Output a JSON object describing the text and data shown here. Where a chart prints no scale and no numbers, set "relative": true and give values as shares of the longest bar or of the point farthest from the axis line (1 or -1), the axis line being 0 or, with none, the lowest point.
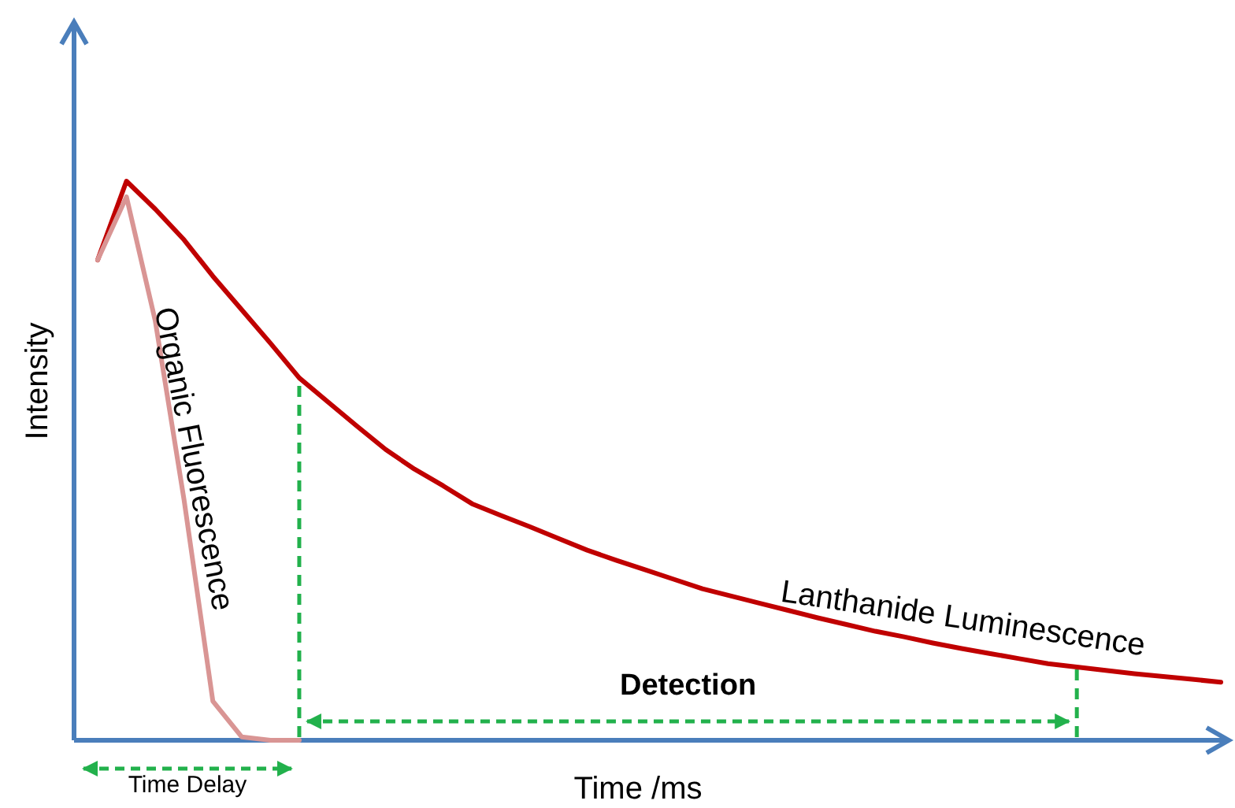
{
  "chart_data": {
    "type": "line",
    "relative": true,
    "xlabel": "Time /ms",
    "ylabel": "Intensity",
    "line_style": "solid",
    "categories": [
      null,
      null,
      null,
      null,
      null,
      null,
      null,
      null,
      null,
      null,
      null,
      null,
      null,
      null,
      null,
      null,
      null,
      null,
      null,
      null,
      null,
      null,
      null,
      null,
      null,
      null,
      null,
      null,
      null,
      null,
      null,
      null,
      null,
      null,
      null,
      null,
      null,
      null,
      null,
      null
    ],
    "series": [
      {
        "name": "Lanthanide Luminescence",
        "color": "#c00000",
        "values": [
          0.859,
          1,
          0.95,
          0.895,
          0.83,
          0.77,
          0.71,
          0.648,
          0.605,
          0.562,
          0.52,
          0.485,
          0.455,
          0.423,
          0.402,
          0.382,
          0.361,
          0.34,
          0.322,
          0.305,
          0.288,
          0.271,
          0.258,
          0.245,
          0.232,
          0.219,
          0.207,
          0.195,
          0.185,
          0.174,
          0.164,
          0.155,
          0.146,
          0.137,
          0.131,
          0.125,
          0.119,
          0.114,
          0.109,
          0.104
        ]
      },
      {
        "name": "Organic Fluorescence",
        "color": "#d99594",
        "values": [
          0.859,
          0.972,
          0.75,
          0.43,
          0.07,
          0.006,
          0,
          0,
          null,
          null,
          null,
          null,
          null,
          null,
          null,
          null,
          null,
          null,
          null,
          null,
          null,
          null,
          null,
          null,
          null,
          null,
          null,
          null,
          null,
          null,
          null,
          null,
          null,
          null,
          null,
          null,
          null,
          null,
          null,
          null
        ]
      }
    ],
    "annotations": [
      "Time Delay",
      "Detection"
    ]
  }
}
